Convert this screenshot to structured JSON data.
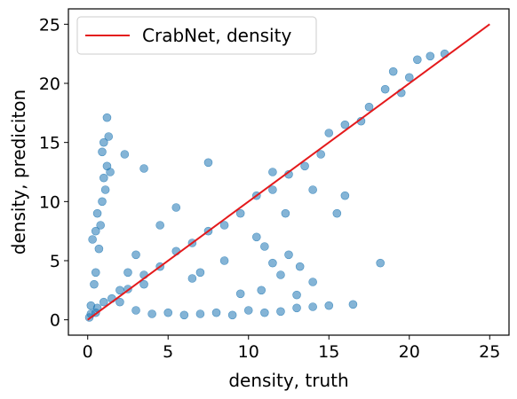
{
  "chart_data": {
    "type": "scatter",
    "xlabel": "density, truth",
    "ylabel": "density, prediciton",
    "xlim": [
      -1.2,
      26.2
    ],
    "ylim": [
      -1.3,
      26.3
    ],
    "xticks": [
      0,
      5,
      10,
      15,
      20,
      25
    ],
    "yticks": [
      0,
      5,
      10,
      15,
      20,
      25
    ],
    "grid": false,
    "legend": {
      "placement": "top-left",
      "entries": [
        {
          "label": "CrabNet, density",
          "color": "#e41a1c",
          "kind": "line"
        }
      ]
    },
    "point_color": "#1f77b4",
    "series": [
      {
        "kind": "scatter",
        "points": [
          [
            0.5,
            4.0
          ],
          [
            0.7,
            6.0
          ],
          [
            0.8,
            8.0
          ],
          [
            0.9,
            10.0
          ],
          [
            1.0,
            12.0
          ],
          [
            1.2,
            13.0
          ],
          [
            1.0,
            15.0
          ],
          [
            1.3,
            15.5
          ],
          [
            1.2,
            17.1
          ],
          [
            0.6,
            9.0
          ],
          [
            0.4,
            3.0
          ],
          [
            0.2,
            1.2
          ],
          [
            1.1,
            11.0
          ],
          [
            0.9,
            14.2
          ],
          [
            2.3,
            14.0
          ],
          [
            1.4,
            12.5
          ],
          [
            0.3,
            6.8
          ],
          [
            0.5,
            7.5
          ],
          [
            2.0,
            1.5
          ],
          [
            3.0,
            0.8
          ],
          [
            4.0,
            0.5
          ],
          [
            5.0,
            0.6
          ],
          [
            6.0,
            0.4
          ],
          [
            7.0,
            0.5
          ],
          [
            8.0,
            0.6
          ],
          [
            9.0,
            0.4
          ],
          [
            10.0,
            0.8
          ],
          [
            11.0,
            0.6
          ],
          [
            12.0,
            0.7
          ],
          [
            13.0,
            1.0
          ],
          [
            14.0,
            1.1
          ],
          [
            15.0,
            1.2
          ],
          [
            3.5,
            12.8
          ],
          [
            7.5,
            13.3
          ],
          [
            11.5,
            12.5
          ],
          [
            12.3,
            9.0
          ],
          [
            14.0,
            11.0
          ],
          [
            16.0,
            10.5
          ],
          [
            15.5,
            9.0
          ],
          [
            18.2,
            4.8
          ],
          [
            16.5,
            1.3
          ],
          [
            14.0,
            3.2
          ],
          [
            13.0,
            2.1
          ],
          [
            12.0,
            3.8
          ],
          [
            11.5,
            4.8
          ],
          [
            10.8,
            2.5
          ],
          [
            9.5,
            2.2
          ],
          [
            8.5,
            5.0
          ],
          [
            7.0,
            4.0
          ],
          [
            6.5,
            3.5
          ],
          [
            5.5,
            9.5
          ],
          [
            4.5,
            8.0
          ],
          [
            3.0,
            5.5
          ],
          [
            3.5,
            3.0
          ],
          [
            2.0,
            2.5
          ],
          [
            2.5,
            4.0
          ],
          [
            12.5,
            5.5
          ],
          [
            11.0,
            6.2
          ],
          [
            13.2,
            4.5
          ],
          [
            10.5,
            7.0
          ],
          [
            20.5,
            22.0
          ],
          [
            21.3,
            22.3
          ],
          [
            22.2,
            22.5
          ],
          [
            19.0,
            21.0
          ],
          [
            20.0,
            20.5
          ],
          [
            17.5,
            18.0
          ],
          [
            18.5,
            19.5
          ],
          [
            19.5,
            19.2
          ],
          [
            17.0,
            16.8
          ],
          [
            16.0,
            16.5
          ],
          [
            15.0,
            15.8
          ],
          [
            14.5,
            14.0
          ],
          [
            13.5,
            13.0
          ],
          [
            12.5,
            12.3
          ],
          [
            11.5,
            11.0
          ],
          [
            10.5,
            10.5
          ],
          [
            9.5,
            9.0
          ],
          [
            8.5,
            8.0
          ],
          [
            7.5,
            7.5
          ],
          [
            6.5,
            6.5
          ],
          [
            5.5,
            5.8
          ],
          [
            4.5,
            4.5
          ],
          [
            3.5,
            3.8
          ],
          [
            2.5,
            2.6
          ],
          [
            1.5,
            1.8
          ],
          [
            0.5,
            0.6
          ],
          [
            0.1,
            0.2
          ],
          [
            0.2,
            0.5
          ],
          [
            0.6,
            1.0
          ],
          [
            1.0,
            1.5
          ]
        ]
      },
      {
        "kind": "line",
        "name": "CrabNet, density",
        "points": [
          [
            0,
            0
          ],
          [
            25,
            25
          ]
        ]
      }
    ]
  }
}
